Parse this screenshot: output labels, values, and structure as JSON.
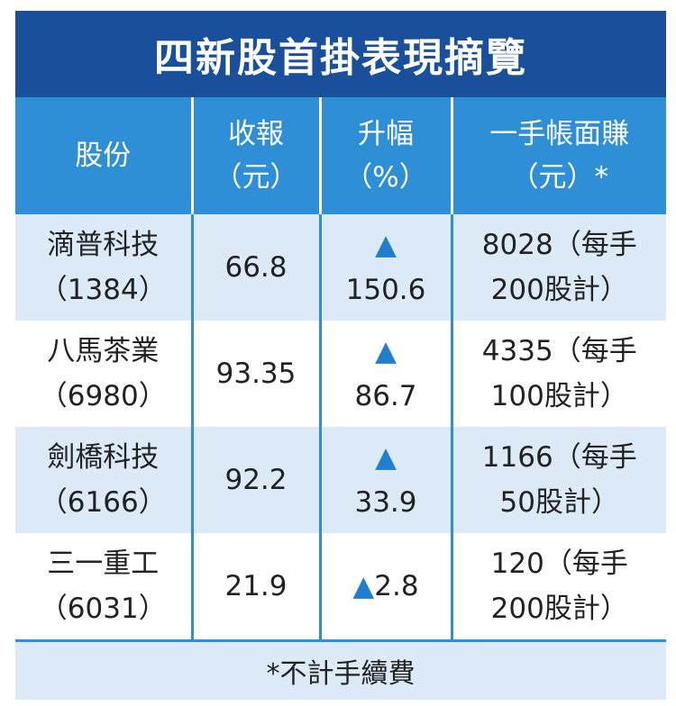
{
  "title": "四新股首掛表現摘覽",
  "chart_data": {
    "type": "table",
    "title": "四新股首掛表現摘覽",
    "columns": [
      {
        "line1": "股份",
        "line2": ""
      },
      {
        "line1": "收報",
        "line2": "（元）"
      },
      {
        "line1": "升幅",
        "line2": "（%）"
      },
      {
        "line1": "一手帳面賺",
        "line2": "（元）*"
      }
    ],
    "rows": [
      {
        "name": "滴普科技",
        "code": "（1384）",
        "close": "66.8",
        "arrow": "▲",
        "gain": "150.6",
        "profit_line1": "8028（每手",
        "profit_line2": "200股計）"
      },
      {
        "name": "八馬茶業",
        "code": "（6980）",
        "close": "93.35",
        "arrow": "▲",
        "gain": "86.7",
        "profit_line1": "4335（每手",
        "profit_line2": "100股計）"
      },
      {
        "name": "劍橋科技",
        "code": "（6166）",
        "close": "92.2",
        "arrow": "▲",
        "gain": "33.9",
        "profit_line1": "1166（每手",
        "profit_line2": "50股計）"
      },
      {
        "name": "三一重工",
        "code": "（6031）",
        "close": "21.9",
        "arrow": "▲",
        "gain": "2.8",
        "profit_line1": "120（每手",
        "profit_line2": "200股計）"
      }
    ],
    "footnote": "*不計手續費"
  },
  "colors": {
    "title_bg": "#1a4f9c",
    "header_bg": "#2f8fd6",
    "row_light": "#dce9f7",
    "arrow": "#1f7fce"
  }
}
